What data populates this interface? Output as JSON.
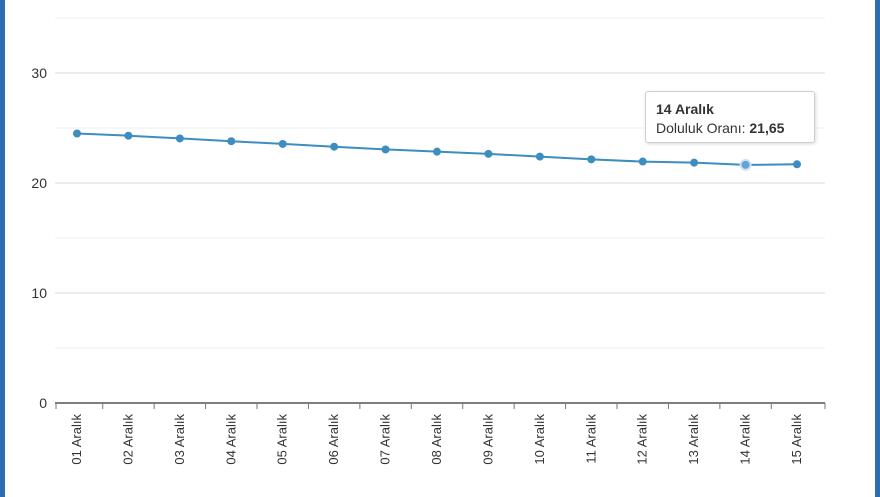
{
  "chart_data": {
    "type": "line",
    "categories": [
      "01 Aralık",
      "02 Aralık",
      "03 Aralık",
      "04 Aralık",
      "05 Aralık",
      "06 Aralık",
      "07 Aralık",
      "08 Aralık",
      "09 Aralık",
      "10 Aralık",
      "11 Aralık",
      "12 Aralık",
      "13 Aralık",
      "14 Aralık",
      "15 Aralık"
    ],
    "series": [
      {
        "name": "Doluluk Oranı",
        "values": [
          24.5,
          24.3,
          24.05,
          23.8,
          23.55,
          23.3,
          23.05,
          22.85,
          22.65,
          22.4,
          22.15,
          21.95,
          21.85,
          21.65,
          21.7
        ],
        "color": "#3d8dbf"
      }
    ],
    "ylim": [
      0,
      35
    ],
    "yticks": [
      0,
      10,
      20,
      30
    ],
    "grid": true,
    "tooltip": {
      "title": "14 Aralık",
      "label": "Doluluk Oranı: ",
      "value": "21,65"
    }
  }
}
